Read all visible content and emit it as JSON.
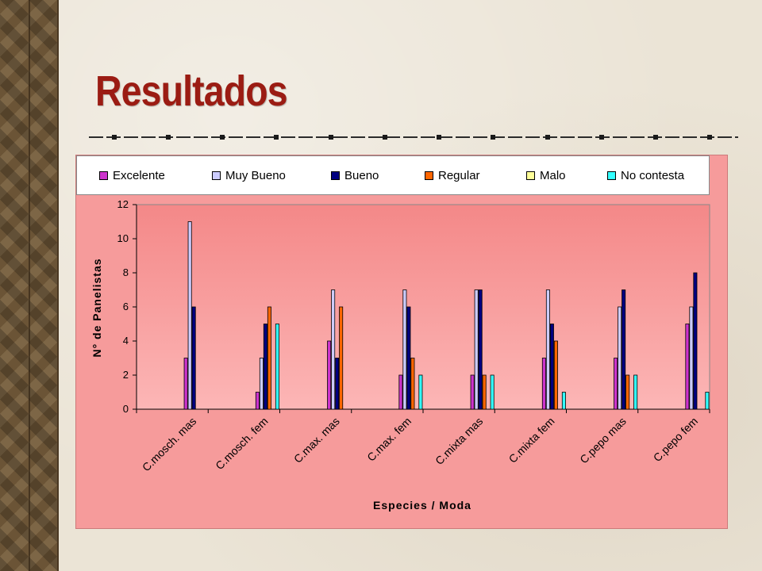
{
  "slide": {
    "title": "Resultados"
  },
  "colors": {
    "title": "#9b1c13",
    "chart_background": "#f69b9b",
    "plot_top": "#f48888",
    "plot_bottom": "#fcb6b6"
  },
  "chart_data": {
    "type": "bar",
    "title": "",
    "xlabel": "Especies / Moda",
    "ylabel": "N° de Panelistas",
    "ylim": [
      0,
      12
    ],
    "yticks": [
      0,
      2,
      4,
      6,
      8,
      10,
      12
    ],
    "grid": false,
    "legend_position": "top",
    "categories": [
      "C.mosch. mas",
      "C.mosch. fem",
      "C.max. mas",
      "C.max. fem",
      "C.mixta mas",
      "C.mixta fem",
      "C.pepo mas",
      "C.pepo fem"
    ],
    "series": [
      {
        "name": "Excelente",
        "color": "#cc33cc",
        "values": [
          3,
          1,
          4,
          2,
          2,
          3,
          3,
          5
        ]
      },
      {
        "name": "Muy Bueno",
        "color": "#ccccff",
        "values": [
          11,
          3,
          7,
          7,
          7,
          7,
          6,
          6
        ]
      },
      {
        "name": "Bueno",
        "color": "#000080",
        "values": [
          6,
          5,
          3,
          6,
          7,
          5,
          7,
          8
        ]
      },
      {
        "name": "Regular",
        "color": "#ff6600",
        "values": [
          0,
          6,
          6,
          3,
          2,
          4,
          2,
          0
        ]
      },
      {
        "name": "Malo",
        "color": "#ffff99",
        "values": [
          0,
          0,
          0,
          0,
          0,
          0,
          0,
          0
        ]
      },
      {
        "name": "No contesta",
        "color": "#33ffff",
        "values": [
          0,
          5,
          0,
          2,
          2,
          1,
          2,
          1
        ]
      }
    ]
  }
}
